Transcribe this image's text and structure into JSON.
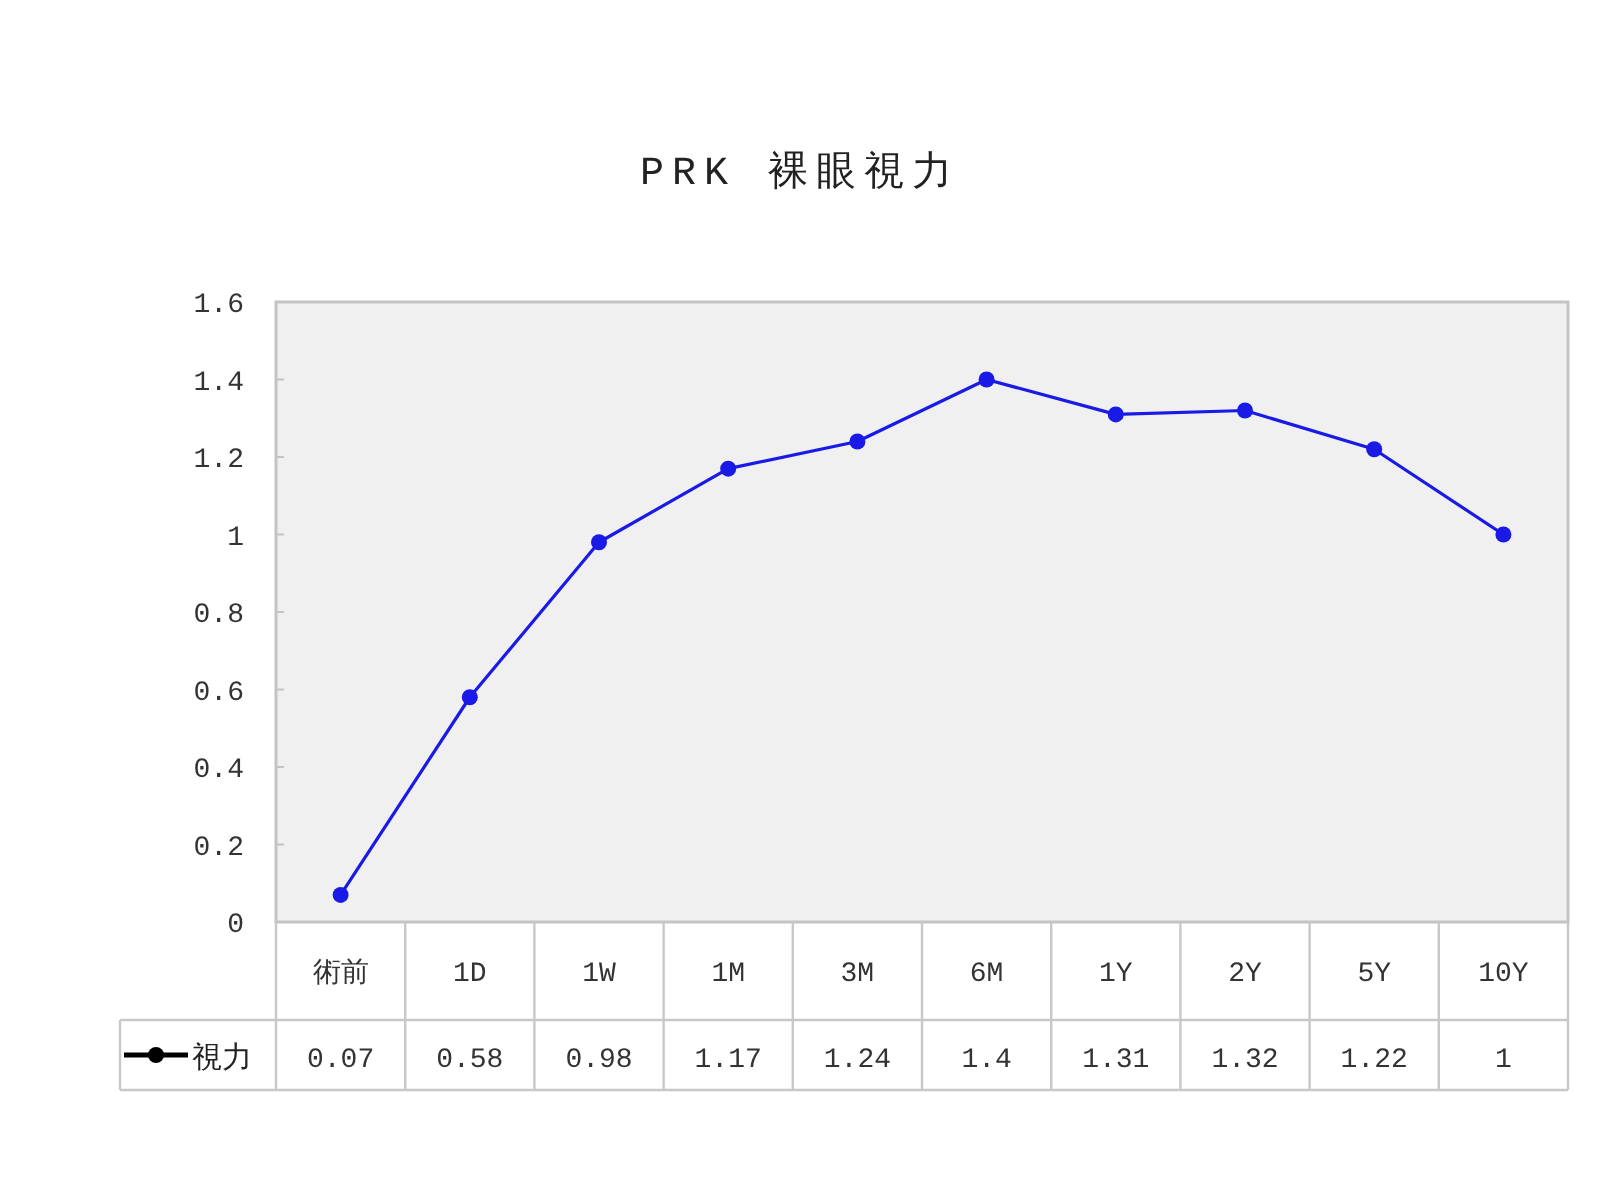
{
  "chart_data": {
    "type": "line",
    "title": "PRK 裸眼視力",
    "categories": [
      "術前",
      "1D",
      "1W",
      "1M",
      "3M",
      "6M",
      "1Y",
      "2Y",
      "5Y",
      "10Y"
    ],
    "series": [
      {
        "name": "視力",
        "color": "#1a1ae6",
        "values": [
          0.07,
          0.58,
          0.98,
          1.17,
          1.24,
          1.4,
          1.31,
          1.32,
          1.22,
          1
        ]
      }
    ],
    "ylim": [
      0,
      1.6
    ],
    "yticks": [
      0,
      0.2,
      0.4,
      0.6,
      0.8,
      1,
      1.2,
      1.4,
      1.6
    ],
    "marker": "circle",
    "line_style": "solid",
    "data_labels": true,
    "legend": "bottom left"
  }
}
